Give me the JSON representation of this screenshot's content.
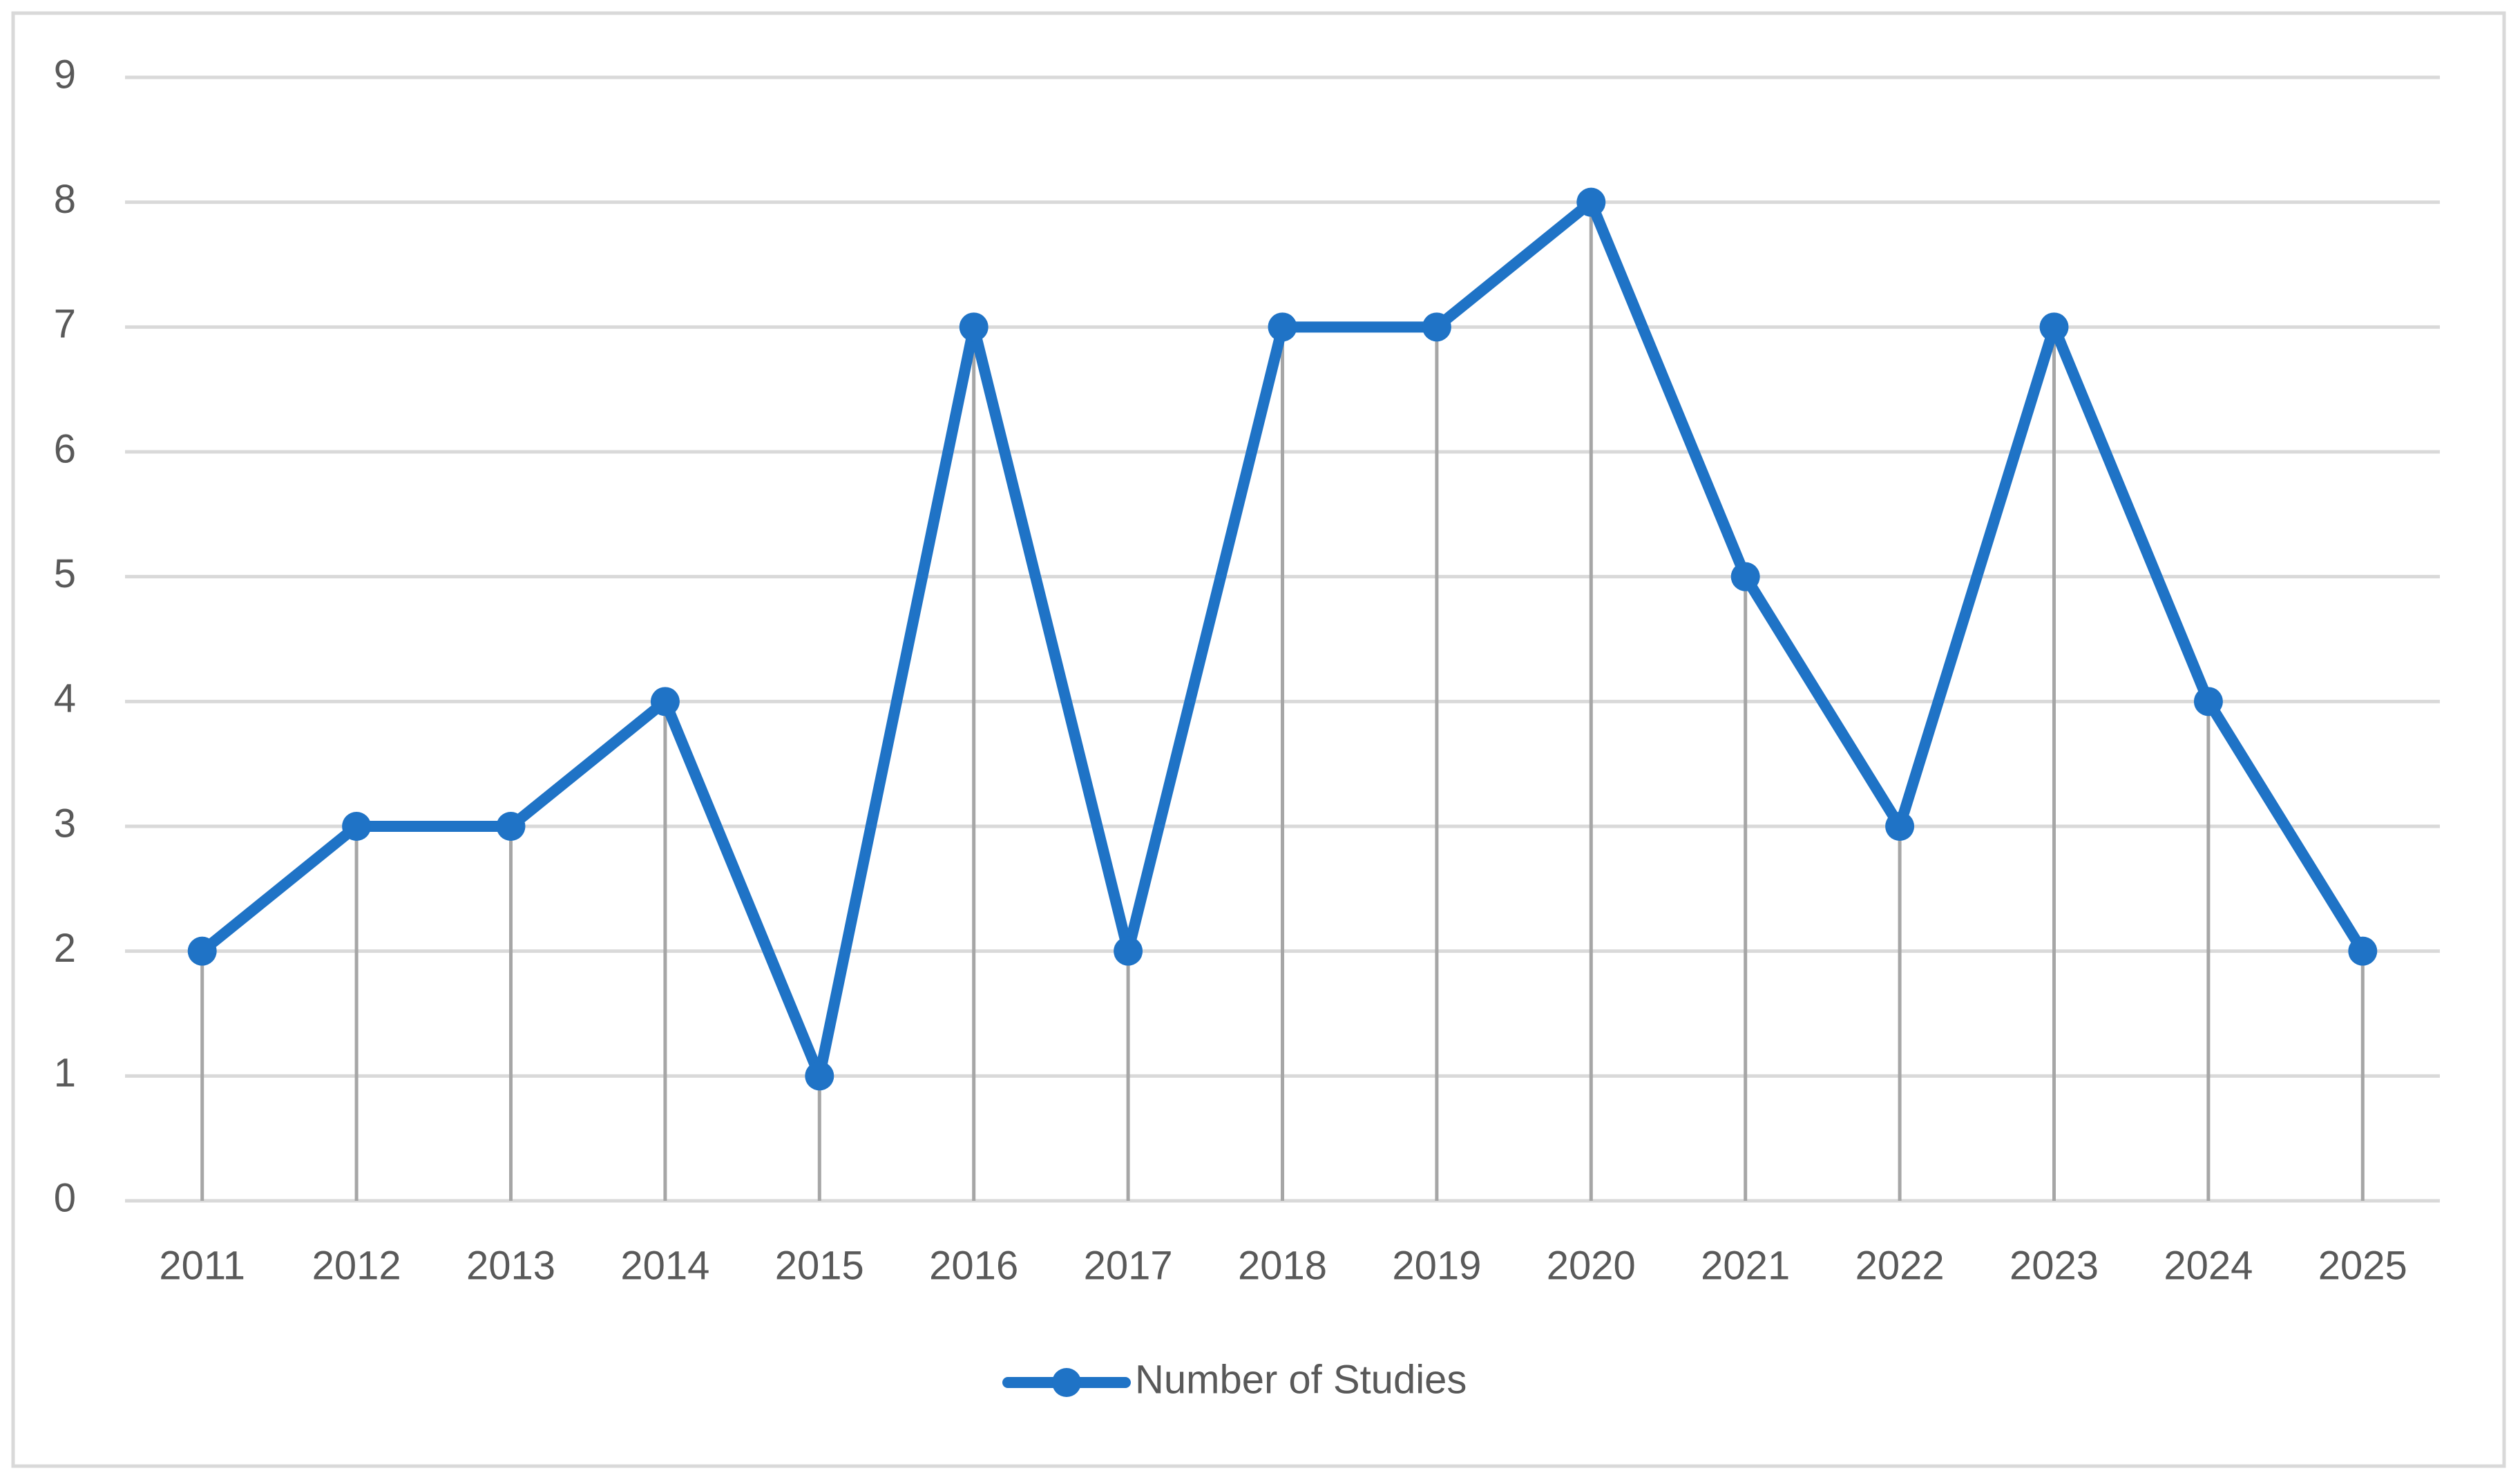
{
  "chart_data": {
    "type": "line",
    "x": [
      2011,
      2012,
      2013,
      2014,
      2015,
      2016,
      2017,
      2018,
      2019,
      2020,
      2021,
      2022,
      2023,
      2024,
      2025
    ],
    "series": [
      {
        "name": "Number of Studies",
        "color": "#1f73c6",
        "values": [
          2,
          3,
          3,
          4,
          1,
          7,
          2,
          7,
          7,
          8,
          5,
          3,
          7,
          4,
          2
        ]
      }
    ],
    "ylim": [
      0,
      9
    ],
    "yticks": [
      0,
      1,
      2,
      3,
      4,
      5,
      6,
      7,
      8,
      9
    ],
    "grid": true,
    "drop_lines": true,
    "legend": "bottom"
  }
}
